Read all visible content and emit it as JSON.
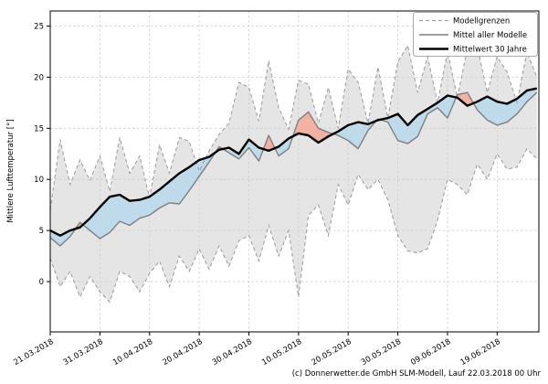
{
  "footer": {
    "credit": "(c) Donnerwetter.de GmbH SLM-Modell, Lauf 22.03.2018 00 Uhr"
  },
  "colors": {
    "background": "#ffffff",
    "band_fill": "#e5e5e5",
    "band_edge": "#999999",
    "grid": "#cccccc",
    "model_mean_line": "#7f7f7f",
    "mean30y_line": "#000000",
    "fill_below": "#bfdaea",
    "fill_above": "#f1b2a4",
    "axis": "#000000"
  },
  "chart_data": {
    "type": "line",
    "title": "",
    "xlabel": "",
    "ylabel": "Mittlere Lufttemperatur [°]",
    "grid": "dashed",
    "x_unit": "days since 21.03.2018",
    "xlim_days": [
      0,
      98.4
    ],
    "ylim": [
      -4.9,
      26.5
    ],
    "y_ticks": [
      0,
      5,
      10,
      15,
      20,
      25
    ],
    "x_ticks": [
      {
        "day": 0,
        "label": "21.03.2018"
      },
      {
        "day": 10,
        "label": "31.03.2018"
      },
      {
        "day": 20,
        "label": "10.04.2018"
      },
      {
        "day": 30,
        "label": "20.04.2018"
      },
      {
        "day": 40,
        "label": "30.04.2018"
      },
      {
        "day": 50,
        "label": "10.05.2018"
      },
      {
        "day": 60,
        "label": "20.05.2018"
      },
      {
        "day": 70,
        "label": "30.05.2018"
      },
      {
        "day": 80,
        "label": "09.06.2018"
      },
      {
        "day": 90,
        "label": "19.06.2018"
      }
    ],
    "legend": {
      "position": "upper-right",
      "entries": [
        {
          "label": "Modellgrenzen",
          "style": "dashed-gray"
        },
        {
          "label": "Mittel aller Modelle",
          "style": "solid-gray"
        },
        {
          "label": "Mittelwert 30 Jahre",
          "style": "solid-black-thick"
        }
      ]
    },
    "days": [
      0,
      2,
      4,
      6,
      8,
      10,
      12,
      14,
      16,
      18,
      20,
      22,
      24,
      26,
      28,
      30,
      32,
      34,
      36,
      38,
      40,
      42,
      44,
      46,
      48,
      50,
      52,
      54,
      56,
      58,
      60,
      62,
      64,
      66,
      68,
      70,
      72,
      74,
      76,
      78,
      80,
      82,
      84,
      86,
      88,
      90,
      92,
      94,
      96,
      98
    ],
    "series": [
      {
        "name": "Modellgrenzen (Maximum)",
        "role": "band_upper",
        "values": [
          7.0,
          13.9,
          9.5,
          11.9,
          9.9,
          12.3,
          8.8,
          14.1,
          10.6,
          12.3,
          8.2,
          13.4,
          10.6,
          14.1,
          13.7,
          10.8,
          12.8,
          14.4,
          15.5,
          19.5,
          19.0,
          15.7,
          21.6,
          17.0,
          14.9,
          19.7,
          19.3,
          15.5,
          19.0,
          15.0,
          20.8,
          19.5,
          15.5,
          21.0,
          16.0,
          21.5,
          23.1,
          18.5,
          22.0,
          17.5,
          22.5,
          18.0,
          22.8,
          23.0,
          18.5,
          22.0,
          20.5,
          17.5,
          22.5,
          20.0
        ]
      },
      {
        "name": "Modellgrenzen (Minimum)",
        "role": "band_lower",
        "values": [
          2.3,
          -0.5,
          1.0,
          -1.5,
          0.5,
          -1.0,
          -2.0,
          1.0,
          0.5,
          -1.0,
          0.8,
          2.0,
          -0.5,
          2.5,
          1.0,
          3.2,
          1.2,
          3.5,
          1.5,
          4.0,
          4.5,
          2.0,
          5.5,
          2.5,
          5.0,
          -1.5,
          6.5,
          7.5,
          4.5,
          9.5,
          7.5,
          10.5,
          9.0,
          10.0,
          8.0,
          4.5,
          3.0,
          2.8,
          3.2,
          6.0,
          10.0,
          9.5,
          8.5,
          11.5,
          10.0,
          12.5,
          11.0,
          11.2,
          13.0,
          12.0
        ]
      },
      {
        "name": "Mittel aller Modelle",
        "role": "model_mean",
        "values": [
          4.3,
          3.5,
          4.4,
          5.8,
          5.0,
          4.2,
          4.8,
          5.9,
          5.5,
          6.2,
          6.5,
          7.2,
          7.7,
          7.6,
          8.9,
          10.3,
          11.7,
          13.2,
          12.6,
          12.0,
          13.1,
          11.8,
          14.3,
          12.3,
          13.0,
          15.8,
          16.6,
          15.0,
          14.6,
          14.3,
          13.8,
          13.0,
          14.8,
          15.9,
          15.6,
          13.8,
          13.5,
          14.2,
          16.4,
          17.0,
          16.0,
          18.3,
          18.5,
          16.8,
          15.8,
          15.3,
          15.6,
          16.4,
          17.6,
          18.5
        ]
      },
      {
        "name": "Mittelwert 30 Jahre",
        "role": "mean_30y",
        "values": [
          5.0,
          4.5,
          5.0,
          5.3,
          6.2,
          7.3,
          8.3,
          8.5,
          7.9,
          8.0,
          8.3,
          9.0,
          9.8,
          10.6,
          11.2,
          11.9,
          12.2,
          12.9,
          13.1,
          12.5,
          13.9,
          13.1,
          12.8,
          13.2,
          14.0,
          14.5,
          14.3,
          13.6,
          14.2,
          14.7,
          15.3,
          15.6,
          15.4,
          15.8,
          16.0,
          16.4,
          15.3,
          16.3,
          16.9,
          17.5,
          18.2,
          18.0,
          17.2,
          17.6,
          18.1,
          17.6,
          17.4,
          17.9,
          18.7,
          18.9
        ]
      }
    ],
    "fill_meaning": {
      "blue": "Mittel aller Modelle unter Mittelwert 30 Jahre",
      "red": "Mittel aller Modelle über Mittelwert 30 Jahre",
      "gray_band": "Spannweite aller Modelle (Modellgrenzen)"
    }
  }
}
